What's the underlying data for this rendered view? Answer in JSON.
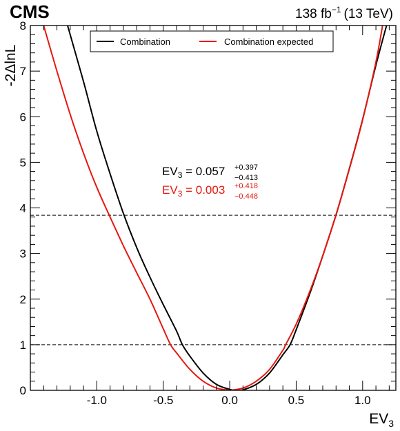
{
  "header": {
    "experiment": "CMS",
    "lumi": "138 fb",
    "lumi_exp": "−1",
    "energy": "(13 TeV)"
  },
  "chart_data": {
    "type": "line",
    "xlabel": "EV",
    "xlabel_sub": "3",
    "ylabel": "-2ΔlnL",
    "xlim": [
      -1.5,
      1.25
    ],
    "ylim": [
      0,
      8
    ],
    "xticks": [
      -1.0,
      -0.5,
      0.0,
      0.5,
      1.0
    ],
    "xtick_labels": [
      "-1.0",
      "-0.5",
      "0.0",
      "0.5",
      "1.0"
    ],
    "yticks": [
      0,
      1,
      2,
      3,
      4,
      5,
      6,
      7,
      8
    ],
    "ytick_labels": [
      "0",
      "1",
      "2",
      "3",
      "4",
      "5",
      "6",
      "7",
      "8"
    ],
    "reference_lines": [
      1.0,
      3.84
    ],
    "legend_placement": "top-center",
    "series": [
      {
        "name": "Combination",
        "color": "#000000",
        "x": [
          -1.22,
          -1.1,
          -1.0,
          -0.9,
          -0.8,
          -0.7,
          -0.6,
          -0.5,
          -0.4,
          -0.356,
          -0.3,
          -0.2,
          -0.1,
          0.0,
          0.057,
          0.1,
          0.2,
          0.3,
          0.4,
          0.454,
          0.5,
          0.6,
          0.7,
          0.8,
          0.9,
          1.0,
          1.1,
          1.18
        ],
        "y": [
          8.0,
          6.77,
          5.68,
          4.75,
          3.88,
          3.13,
          2.48,
          1.88,
          1.3,
          1.0,
          0.75,
          0.38,
          0.13,
          0.02,
          0.0,
          0.01,
          0.13,
          0.38,
          0.78,
          1.0,
          1.33,
          2.1,
          2.95,
          3.85,
          4.86,
          5.94,
          7.13,
          8.0
        ]
      },
      {
        "name": "Combination expected",
        "color": "#e8170e",
        "x": [
          -1.4,
          -1.3,
          -1.2,
          -1.1,
          -1.0,
          -0.9,
          -0.8,
          -0.7,
          -0.6,
          -0.5,
          -0.445,
          -0.4,
          -0.3,
          -0.2,
          -0.1,
          0.0,
          0.003,
          0.1,
          0.2,
          0.3,
          0.4,
          0.421,
          0.5,
          0.6,
          0.7,
          0.8,
          0.9,
          1.0,
          1.1,
          1.15
        ],
        "y": [
          8.0,
          7.0,
          6.05,
          5.2,
          4.45,
          3.8,
          3.17,
          2.58,
          2.0,
          1.35,
          1.0,
          0.82,
          0.46,
          0.2,
          0.05,
          0.0,
          0.0,
          0.05,
          0.2,
          0.46,
          0.88,
          1.0,
          1.45,
          2.15,
          2.95,
          3.85,
          4.85,
          5.93,
          7.2,
          8.0
        ]
      }
    ],
    "annotations": [
      {
        "label": "EV",
        "sub": "3",
        "eq": " = 0.057",
        "up": "+0.397",
        "down": "−0.413",
        "color": "#000000"
      },
      {
        "label": "EV",
        "sub": "3",
        "eq": " = 0.003",
        "up": "+0.418",
        "down": "−0.448",
        "color": "#e8170e"
      }
    ]
  }
}
